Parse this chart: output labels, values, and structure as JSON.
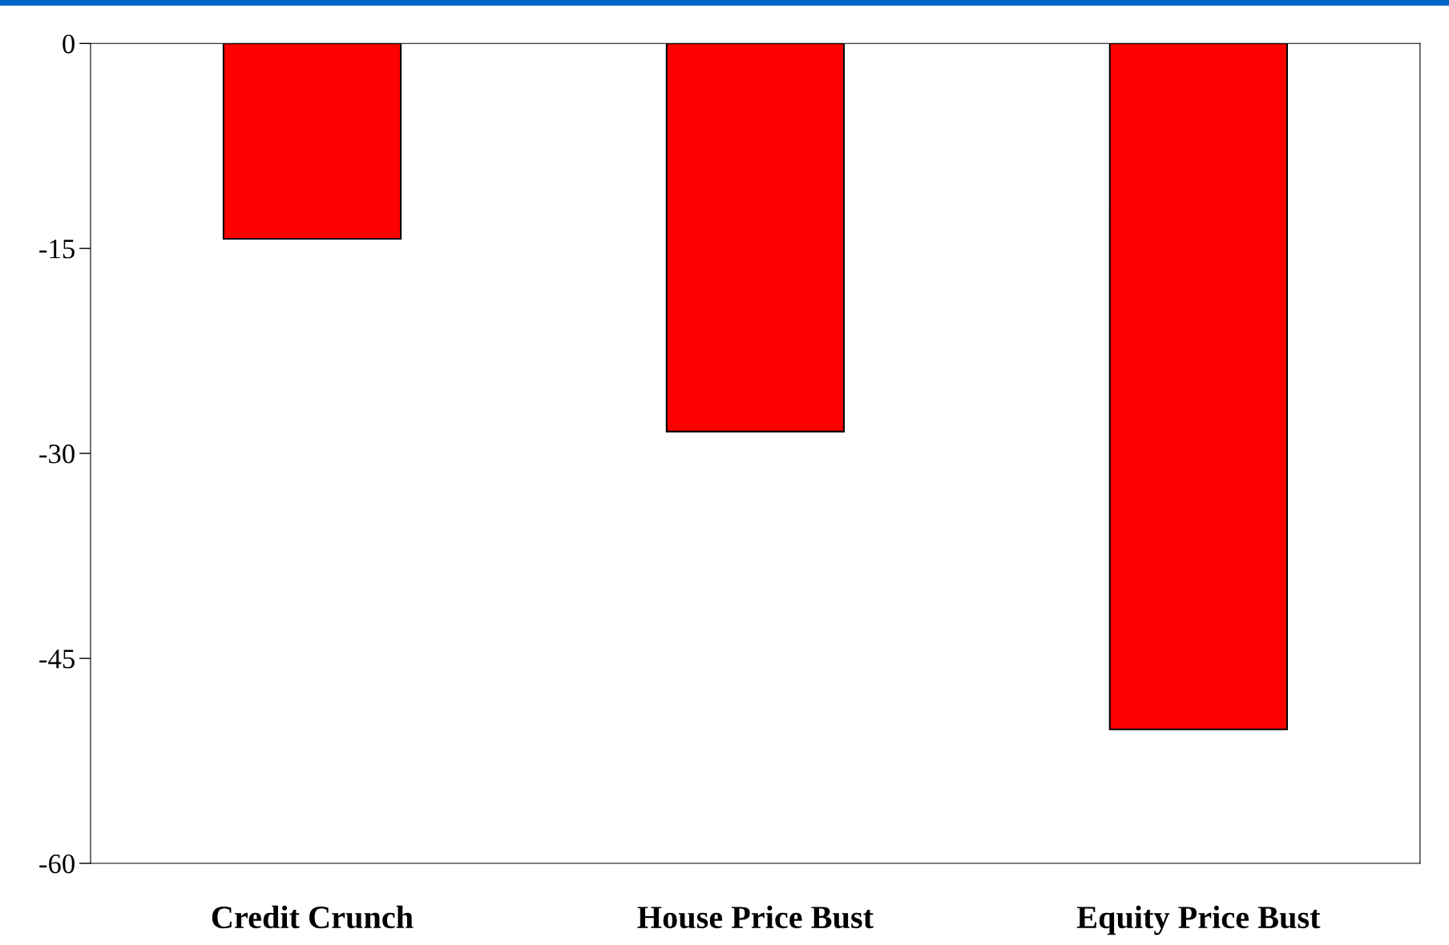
{
  "chart_data": {
    "type": "bar",
    "categories": [
      "Credit Crunch",
      "House Price Bust",
      "Equity Price Bust"
    ],
    "values": [
      -14.3,
      -28.4,
      -50.2
    ],
    "color": "#ff0000",
    "ylim": [
      -60,
      0
    ],
    "yticks": [
      0,
      -15,
      -30,
      -45,
      -60
    ],
    "grid": false
  }
}
